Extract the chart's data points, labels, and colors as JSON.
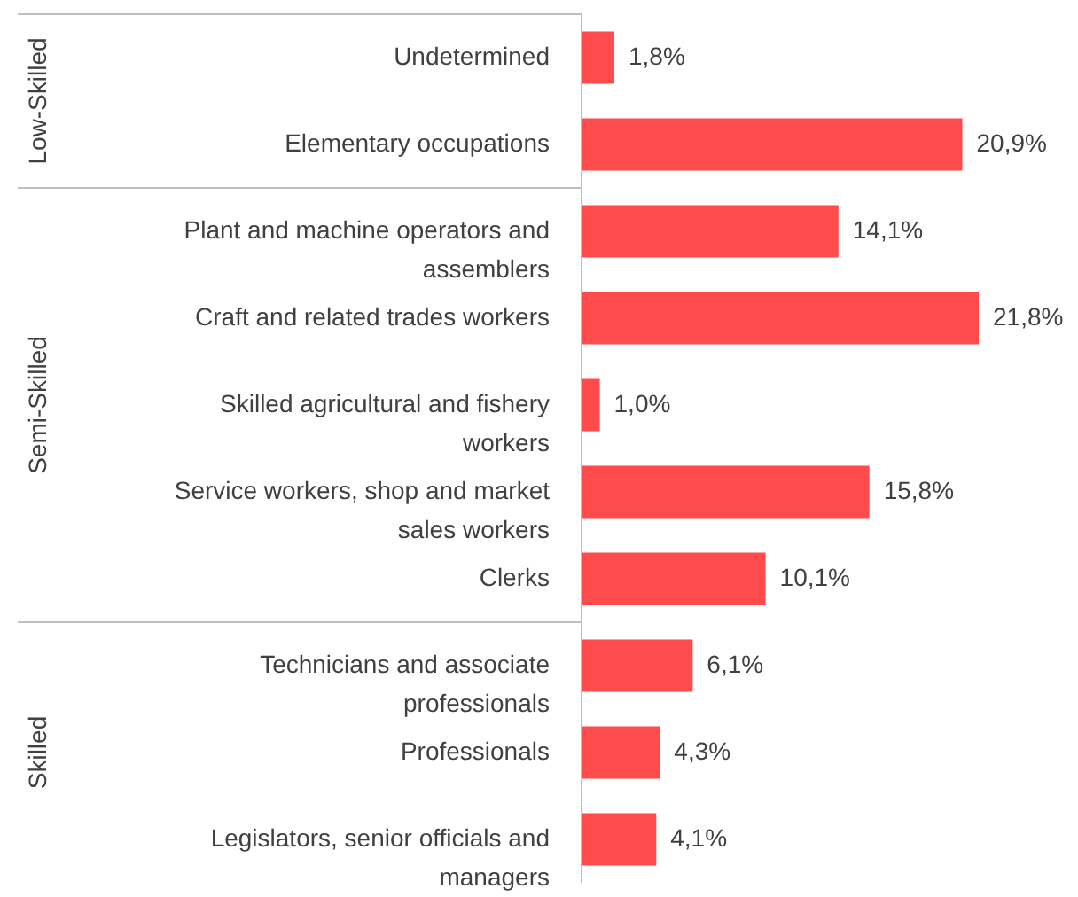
{
  "chart_data": {
    "type": "bar",
    "orientation": "horizontal",
    "categories": [
      "Undetermined",
      "Elementary occupations",
      "Plant and machine operators and assemblers",
      "Craft and related trades workers",
      "Skilled agricultural and fishery workers",
      "Service workers, shop and market sales workers",
      "Clerks",
      "Technicians and associate professionals",
      "Professionals",
      "Legislators, senior officials and managers"
    ],
    "values": [
      1.8,
      20.9,
      14.1,
      21.8,
      1.0,
      15.8,
      10.1,
      6.1,
      4.3,
      4.1
    ],
    "value_labels": [
      "1,8%",
      "20,9%",
      "14,1%",
      "21,8%",
      "1,0%",
      "15,8%",
      "10,1%",
      "6,1%",
      "4,3%",
      "4,1%"
    ],
    "color": "#ff4b4b",
    "annotations": [
      "Low-Skilled",
      "Semi-Skilled",
      "Skilled"
    ]
  }
}
